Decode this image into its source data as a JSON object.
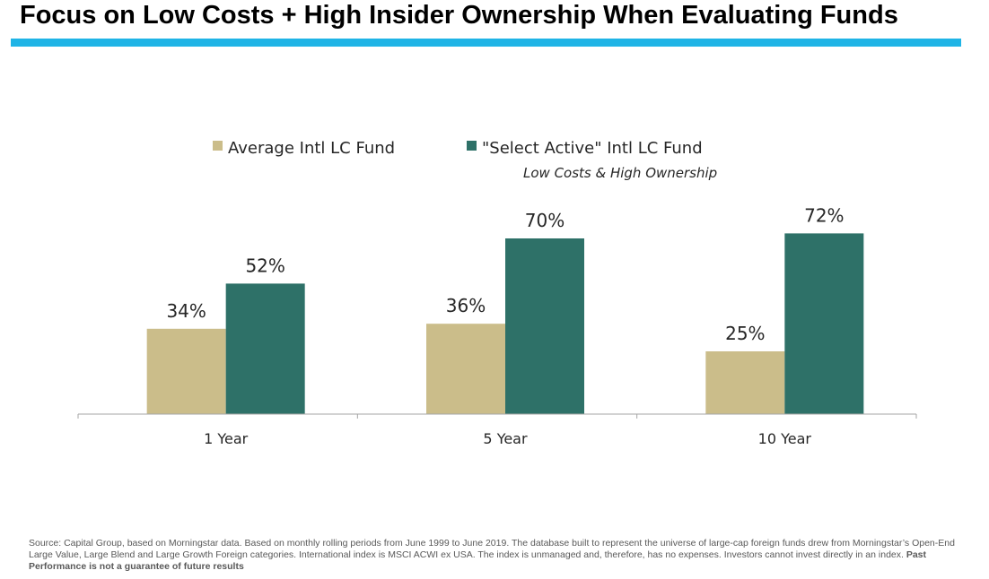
{
  "page": {
    "title": "Focus on Low Costs + High Insider Ownership When Evaluating Funds",
    "accent_color": "#1fb4e6"
  },
  "chart_data": {
    "type": "bar",
    "categories": [
      "1 Year",
      "5 Year",
      "10 Year"
    ],
    "series": [
      {
        "name": "Average Intl LC Fund",
        "values": [
          34,
          36,
          25
        ],
        "labels": [
          "34%",
          "36%",
          "25%"
        ],
        "color": "#cbbd8a"
      },
      {
        "name": "\"Select Active\" Intl LC Fund",
        "values": [
          52,
          70,
          72
        ],
        "labels": [
          "52%",
          "70%",
          "72%"
        ],
        "color": "#2e7168"
      }
    ],
    "legend_subtitle": "Low Costs & High Ownership",
    "legend_position": "top-center",
    "ylim": [
      0,
      80
    ],
    "grid": false,
    "xlabel": "",
    "ylabel": ""
  },
  "footer": {
    "text": "Source: Capital Group, based on Morningstar data. Based on monthly rolling periods from June 1999 to June 2019. The database built to represent the universe of large-cap foreign funds drew from Morningstar’s Open-End Large Value, Large Blend and Large Growth Foreign categories.  International index is MSCI ACWI ex USA. The index is unmanaged and, therefore, has no expenses. Investors cannot invest directly in an index.",
    "bold_text": "Past Performance is not a guarantee of future results"
  }
}
